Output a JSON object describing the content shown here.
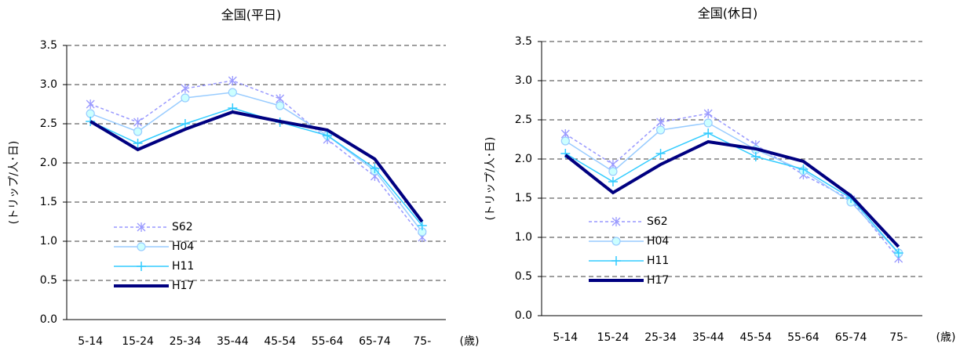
{
  "chart_data": [
    {
      "type": "line",
      "title": "全国(平日)",
      "y_label": "(トリップ/人･日)",
      "x_unit": "(歳)",
      "categories": [
        "5-14",
        "15-24",
        "25-34",
        "35-44",
        "45-54",
        "55-64",
        "65-74",
        "75-"
      ],
      "ylim": [
        0,
        3.5
      ],
      "yticks": [
        {
          "value": 0,
          "label": "0.0"
        },
        0.5,
        {
          "value": 1,
          "label": "1.0"
        },
        1.5,
        {
          "value": 2,
          "label": "2.0"
        },
        2.5,
        {
          "value": 3,
          "label": "3.0"
        },
        3.5
      ],
      "grid": true,
      "series": [
        {
          "name": "S62",
          "color": "#9999ff",
          "marker": "asterisk",
          "dash": true,
          "width": 1.5,
          "values": [
            2.75,
            2.52,
            2.95,
            3.05,
            2.82,
            2.3,
            1.83,
            1.05
          ]
        },
        {
          "name": "H04",
          "color": "#99ccff",
          "marker": "circle",
          "dash": false,
          "width": 1.5,
          "values": [
            2.63,
            2.4,
            2.83,
            2.9,
            2.73,
            2.35,
            1.9,
            1.12
          ]
        },
        {
          "name": "H11",
          "color": "#33ccff",
          "marker": "plus",
          "dash": false,
          "width": 1.5,
          "values": [
            2.53,
            2.25,
            2.5,
            2.7,
            2.52,
            2.35,
            1.93,
            1.2
          ]
        },
        {
          "name": "H17",
          "color": "#000080",
          "marker": "none",
          "dash": false,
          "width": 4,
          "values": [
            2.53,
            2.17,
            2.43,
            2.65,
            2.53,
            2.42,
            2.05,
            1.25
          ]
        }
      ]
    },
    {
      "type": "line",
      "title": "全国(休日)",
      "y_label": "(トリップ/人･日)",
      "x_unit": "(歳)",
      "categories": [
        "5-14",
        "15-24",
        "25-34",
        "35-44",
        "45-54",
        "55-64",
        "65-74",
        "75-"
      ],
      "ylim": [
        0,
        3.5
      ],
      "yticks": [
        {
          "value": 0,
          "label": "0.0"
        },
        0.5,
        {
          "value": 1,
          "label": "1.0"
        },
        1.5,
        {
          "value": 2,
          "label": "2.0"
        },
        2.5,
        {
          "value": 3,
          "label": "3.0"
        },
        3.5
      ],
      "grid": true,
      "series": [
        {
          "name": "S62",
          "color": "#9999ff",
          "marker": "asterisk",
          "dash": true,
          "width": 1.5,
          "values": [
            2.32,
            1.93,
            2.47,
            2.58,
            2.18,
            1.8,
            1.48,
            0.73
          ]
        },
        {
          "name": "H04",
          "color": "#99ccff",
          "marker": "circle",
          "dash": false,
          "width": 1.5,
          "values": [
            2.23,
            1.84,
            2.37,
            2.46,
            2.12,
            1.85,
            1.45,
            0.8
          ]
        },
        {
          "name": "H11",
          "color": "#33ccff",
          "marker": "plus",
          "dash": false,
          "width": 1.5,
          "values": [
            2.07,
            1.71,
            2.07,
            2.33,
            2.03,
            1.87,
            1.5,
            0.8
          ]
        },
        {
          "name": "H17",
          "color": "#000080",
          "marker": "none",
          "dash": false,
          "width": 4,
          "values": [
            2.05,
            1.57,
            1.93,
            2.22,
            2.13,
            1.97,
            1.53,
            0.88
          ]
        }
      ]
    }
  ]
}
